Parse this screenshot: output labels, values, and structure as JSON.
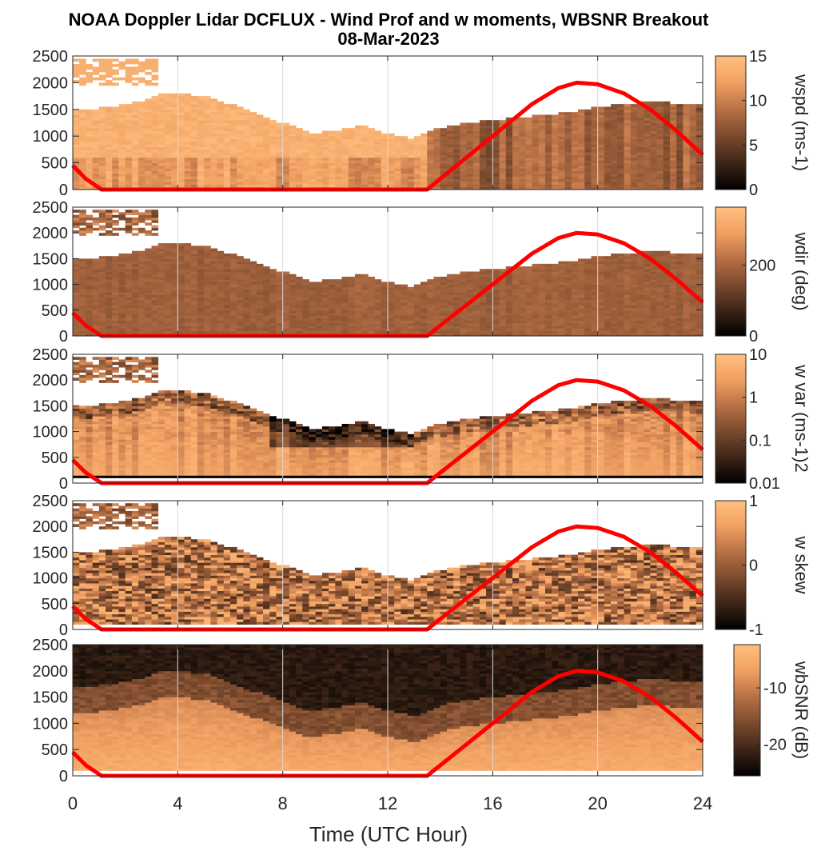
{
  "figure": {
    "title": "NOAA Doppler Lidar DCFLUX - Wind Prof and w moments, WBSNR Breakout",
    "subtitle": "08-Mar-2023",
    "xlabel": "Time (UTC Hour)"
  },
  "colors": {
    "colormap": [
      "#000000",
      "#3d2517",
      "#7a4a2e",
      "#b87046",
      "#f0a062",
      "#ffbf7f"
    ],
    "no_data": "#ffffff",
    "overlay": "#ff0000",
    "gate_line": "#000000",
    "grid": "#d9d9d9",
    "axis": "#262626"
  },
  "chart_data": {
    "type": "heatmap",
    "x": {
      "label": "Time (UTC Hour)",
      "lim": [
        0,
        24
      ],
      "ticks": [
        0,
        4,
        8,
        12,
        16,
        20,
        24
      ]
    },
    "y": {
      "lim": [
        0,
        2500
      ],
      "ticks": [
        0,
        500,
        1000,
        1500,
        2000,
        2500
      ]
    },
    "grid": "vertical",
    "cloud_patch": {
      "x": [
        0,
        3.2
      ],
      "y": [
        1950,
        2450
      ]
    },
    "echo_top_m": [
      [
        0,
        1480
      ],
      [
        1,
        1520
      ],
      [
        2,
        1600
      ],
      [
        3,
        1700
      ],
      [
        3.5,
        1820
      ],
      [
        4,
        1800
      ],
      [
        5,
        1750
      ],
      [
        6,
        1600
      ],
      [
        7,
        1400
      ],
      [
        8,
        1250
      ],
      [
        9,
        1050
      ],
      [
        10,
        1100
      ],
      [
        11,
        1200
      ],
      [
        12,
        1050
      ],
      [
        13,
        950
      ],
      [
        14,
        1150
      ],
      [
        15,
        1250
      ],
      [
        16,
        1300
      ],
      [
        17,
        1350
      ],
      [
        18,
        1400
      ],
      [
        19,
        1450
      ],
      [
        20,
        1550
      ],
      [
        21,
        1600
      ],
      [
        22,
        1650
      ],
      [
        23,
        1620
      ],
      [
        24,
        1600
      ]
    ],
    "overlay_curve": [
      [
        0,
        450
      ],
      [
        0.5,
        200
      ],
      [
        1.1,
        0
      ],
      [
        13.5,
        0
      ],
      [
        14.5,
        400
      ],
      [
        15.5,
        800
      ],
      [
        16.5,
        1200
      ],
      [
        17.5,
        1600
      ],
      [
        18.5,
        1900
      ],
      [
        19.2,
        2000
      ],
      [
        20,
        1970
      ],
      [
        21,
        1800
      ],
      [
        22,
        1500
      ],
      [
        23,
        1100
      ],
      [
        24,
        650
      ]
    ],
    "panels": [
      {
        "name": "wspd",
        "cb_label": "wspd (ms-1)",
        "cb_ticks": [
          "15",
          "10",
          "5",
          "0"
        ],
        "field": "wspd"
      },
      {
        "name": "wdir",
        "cb_label": "wdir (deg)",
        "cb_ticks": [
          "200",
          "0"
        ],
        "field": "wdir"
      },
      {
        "name": "w var",
        "cb_label": "w var (ms-1)2",
        "cb_ticks": [
          "10",
          "1",
          "0.1",
          "0.01"
        ],
        "field": "wvar"
      },
      {
        "name": "w skew",
        "cb_label": "w skew",
        "cb_ticks": [
          "1",
          "0",
          "-1"
        ],
        "field": "wskew"
      },
      {
        "name": "wbSNR",
        "cb_label": "wbSNR (dB)",
        "cb_ticks": [
          "-10",
          "-20"
        ],
        "field": "wbsnr"
      }
    ]
  }
}
